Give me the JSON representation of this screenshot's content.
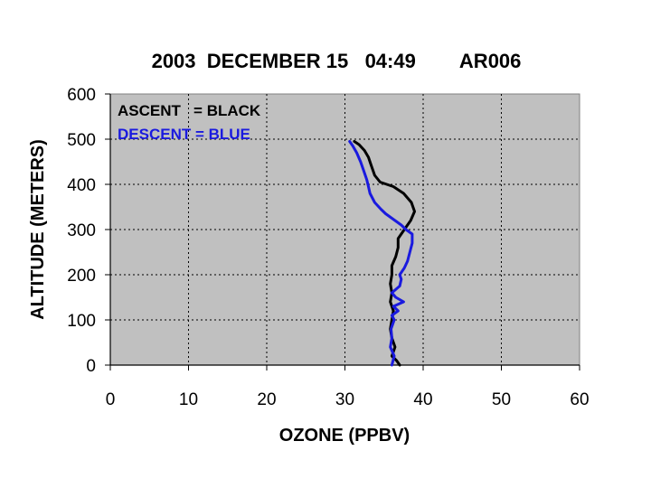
{
  "chart_data": {
    "type": "line",
    "title": "2003  DECEMBER 15   04:49        AR006",
    "xlabel": "OZONE (PPBV)",
    "ylabel": "ALTITUDE (METERS)",
    "xlim": [
      0,
      60
    ],
    "ylim": [
      0,
      600
    ],
    "xticks": [
      "0",
      "10",
      "20",
      "30",
      "40",
      "50",
      "60"
    ],
    "yticks": [
      "0",
      "100",
      "200",
      "300",
      "400",
      "500",
      "600"
    ],
    "grid": true,
    "legend_lines": [
      {
        "text": "ASCENT   = BLACK",
        "color": "#000000"
      },
      {
        "text": "DESCENT = BLUE",
        "color": "#1a1adf"
      }
    ],
    "series": [
      {
        "color": "#000000",
        "points": [
          [
            37.0,
            0
          ],
          [
            36.6,
            10
          ],
          [
            36.0,
            20
          ],
          [
            36.4,
            40
          ],
          [
            36.0,
            60
          ],
          [
            35.8,
            80
          ],
          [
            36.0,
            100
          ],
          [
            36.2,
            120
          ],
          [
            35.8,
            140
          ],
          [
            36.0,
            160
          ],
          [
            35.8,
            180
          ],
          [
            36.0,
            200
          ],
          [
            36.0,
            220
          ],
          [
            36.5,
            240
          ],
          [
            36.8,
            260
          ],
          [
            36.8,
            280
          ],
          [
            37.6,
            300
          ],
          [
            38.4,
            320
          ],
          [
            38.9,
            340
          ],
          [
            38.5,
            360
          ],
          [
            37.5,
            380
          ],
          [
            36.2,
            395
          ],
          [
            34.5,
            405
          ],
          [
            33.8,
            420
          ],
          [
            33.4,
            440
          ],
          [
            33.0,
            460
          ],
          [
            32.5,
            475
          ],
          [
            31.8,
            488
          ],
          [
            31.2,
            495
          ]
        ]
      },
      {
        "color": "#1a1adf",
        "points": [
          [
            36.0,
            0
          ],
          [
            36.3,
            20
          ],
          [
            35.8,
            40
          ],
          [
            36.0,
            60
          ],
          [
            35.9,
            80
          ],
          [
            36.3,
            100
          ],
          [
            36.0,
            110
          ],
          [
            36.8,
            120
          ],
          [
            36.2,
            130
          ],
          [
            37.5,
            140
          ],
          [
            36.5,
            150
          ],
          [
            36.0,
            160
          ],
          [
            37.0,
            175
          ],
          [
            37.2,
            190
          ],
          [
            37.0,
            200
          ],
          [
            37.6,
            215
          ],
          [
            38.0,
            230
          ],
          [
            38.3,
            250
          ],
          [
            38.6,
            270
          ],
          [
            38.6,
            290
          ],
          [
            37.8,
            300
          ],
          [
            37.2,
            310
          ],
          [
            36.0,
            325
          ],
          [
            35.2,
            335
          ],
          [
            34.6,
            345
          ],
          [
            33.8,
            360
          ],
          [
            33.2,
            380
          ],
          [
            33.0,
            395
          ],
          [
            32.8,
            410
          ],
          [
            32.4,
            430
          ],
          [
            32.0,
            450
          ],
          [
            31.5,
            470
          ],
          [
            31.0,
            485
          ],
          [
            30.6,
            495
          ]
        ]
      }
    ]
  }
}
